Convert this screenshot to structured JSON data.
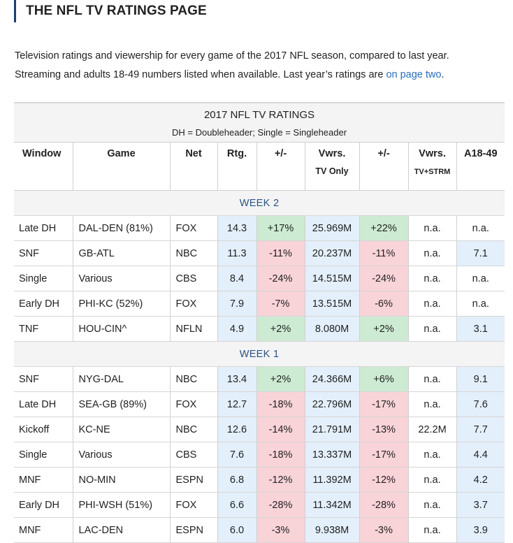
{
  "page": {
    "title": "THE NFL TV RATINGS PAGE",
    "intro_line1": "Television ratings and viewership for every game of the 2017 NFL season, compared to last year.",
    "intro_line2_prefix": "Streaming and adults 18-49 numbers listed when available. Last year’s ratings are ",
    "intro_link": "on page two",
    "intro_line2_suffix": "."
  },
  "table": {
    "title": "2017 NFL TV RATINGS",
    "subtitle": "DH = Doubleheader; Single = Singleheader",
    "headers": {
      "window": "Window",
      "game": "Game",
      "net": "Net",
      "rtg": "Rtg.",
      "rtg_change": "+/-",
      "vwrs": "Vwrs.",
      "vwrs_sub": "TV Only",
      "vwrs_change": "+/-",
      "vwrs2": "Vwrs.",
      "vwrs2_sub": "TV+STRM",
      "a1849": "A18-49"
    },
    "colors": {
      "increase": "#ccebd2",
      "decrease": "#f8d3d8",
      "neutral": "#e3effa",
      "week_label": "#2a5384",
      "accent_bar": "#1c3f6e",
      "link": "#2a6ebb"
    },
    "weeks": [
      {
        "label": "WEEK 2",
        "rows": [
          {
            "window": "Late DH",
            "game": "DAL-DEN (81%)",
            "net": "FOX",
            "rtg": "14.3",
            "rtg_change": "+17%",
            "vwrs": "25.969M",
            "vwrs_change": "+22%",
            "vwrs_strm": "n.a.",
            "a1849": "n.a."
          },
          {
            "window": "SNF",
            "game": "GB-ATL",
            "net": "NBC",
            "rtg": "11.3",
            "rtg_change": "-11%",
            "vwrs": "20.237M",
            "vwrs_change": "-11%",
            "vwrs_strm": "n.a.",
            "a1849": "7.1"
          },
          {
            "window": "Single",
            "game": "Various",
            "net": "CBS",
            "rtg": "8.4",
            "rtg_change": "-24%",
            "vwrs": "14.515M",
            "vwrs_change": "-24%",
            "vwrs_strm": "n.a.",
            "a1849": "n.a."
          },
          {
            "window": "Early DH",
            "game": "PHI-KC (52%)",
            "net": "FOX",
            "rtg": "7.9",
            "rtg_change": "-7%",
            "vwrs": "13.515M",
            "vwrs_change": "-6%",
            "vwrs_strm": "n.a.",
            "a1849": "n.a."
          },
          {
            "window": "TNF",
            "game": "HOU-CIN^",
            "net": "NFLN",
            "rtg": "4.9",
            "rtg_change": "+2%",
            "vwrs": "8.080M",
            "vwrs_change": "+2%",
            "vwrs_strm": "n.a.",
            "a1849": "3.1"
          }
        ]
      },
      {
        "label": "WEEK 1",
        "rows": [
          {
            "window": "SNF",
            "game": "NYG-DAL",
            "net": "NBC",
            "rtg": "13.4",
            "rtg_change": "+2%",
            "vwrs": "24.366M",
            "vwrs_change": "+6%",
            "vwrs_strm": "n.a.",
            "a1849": "9.1"
          },
          {
            "window": "Late DH",
            "game": "SEA-GB (89%)",
            "net": "FOX",
            "rtg": "12.7",
            "rtg_change": "-18%",
            "vwrs": "22.796M",
            "vwrs_change": "-17%",
            "vwrs_strm": "n.a.",
            "a1849": "7.6"
          },
          {
            "window": "Kickoff",
            "game": "KC-NE",
            "net": "NBC",
            "rtg": "12.6",
            "rtg_change": "-14%",
            "vwrs": "21.791M",
            "vwrs_change": "-13%",
            "vwrs_strm": "22.2M",
            "a1849": "7.7"
          },
          {
            "window": "Single",
            "game": "Various",
            "net": "CBS",
            "rtg": "7.6",
            "rtg_change": "-18%",
            "vwrs": "13.337M",
            "vwrs_change": "-17%",
            "vwrs_strm": "n.a.",
            "a1849": "4.4"
          },
          {
            "window": "MNF",
            "game": "NO-MIN",
            "net": "ESPN",
            "rtg": "6.8",
            "rtg_change": "-12%",
            "vwrs": "11.392M",
            "vwrs_change": "-12%",
            "vwrs_strm": "n.a.",
            "a1849": "4.2"
          },
          {
            "window": "Early DH",
            "game": "PHI-WSH (51%)",
            "net": "FOX",
            "rtg": "6.6",
            "rtg_change": "-28%",
            "vwrs": "11.342M",
            "vwrs_change": "-28%",
            "vwrs_strm": "n.a.",
            "a1849": "3.7"
          },
          {
            "window": "MNF",
            "game": "LAC-DEN",
            "net": "ESPN",
            "rtg": "6.0",
            "rtg_change": "-3%",
            "vwrs": "9.938M",
            "vwrs_change": "-3%",
            "vwrs_strm": "n.a.",
            "a1849": "3.9"
          }
        ]
      }
    ]
  }
}
